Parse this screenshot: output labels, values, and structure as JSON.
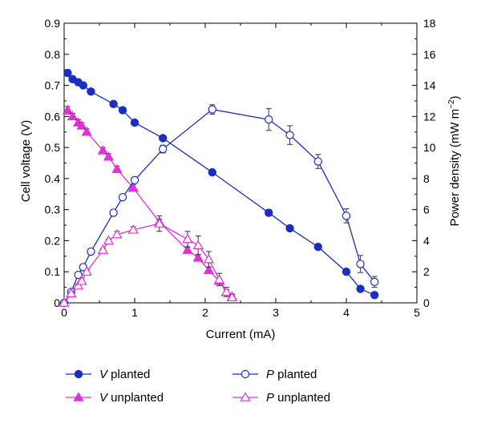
{
  "chart_data": {
    "type": "line",
    "xlabel": "Current (mA)",
    "ylabel_left": "Cell voltage (V)",
    "ylabel_right_main": "Power density (mW m",
    "ylabel_right_sup": "−2",
    "ylabel_right_end": ")",
    "xlim": [
      0,
      5
    ],
    "ylim_left": [
      0,
      0.9
    ],
    "ylim_right": [
      0,
      18
    ],
    "x_ticks": [
      "0",
      "1",
      "2",
      "3",
      "4",
      "5"
    ],
    "y_left_ticks": [
      "0",
      "0.1",
      "0.2",
      "0.3",
      "0.4",
      "0.5",
      "0.6",
      "0.7",
      "0.8",
      "0.9"
    ],
    "y_right_ticks": [
      "0",
      "2",
      "4",
      "6",
      "8",
      "10",
      "12",
      "14",
      "16",
      "18"
    ],
    "grid": false,
    "legend_placement": "bottom",
    "series": [
      {
        "name_var": "V",
        "name_rest": " planted",
        "axis": "left",
        "color": "#1a2fc2",
        "marker": "circle-filled",
        "points": [
          [
            0.05,
            0.74
          ],
          [
            0.12,
            0.72
          ],
          [
            0.2,
            0.71
          ],
          [
            0.27,
            0.7
          ],
          [
            0.38,
            0.68
          ],
          [
            0.7,
            0.64
          ],
          [
            0.83,
            0.62
          ],
          [
            1.0,
            0.58
          ],
          [
            1.4,
            0.53
          ],
          [
            2.1,
            0.42
          ],
          [
            2.9,
            0.29
          ],
          [
            3.2,
            0.24
          ],
          [
            3.6,
            0.18
          ],
          [
            4.0,
            0.1
          ],
          [
            4.2,
            0.045
          ],
          [
            4.4,
            0.025
          ]
        ],
        "errors": [
          0.01,
          0.006,
          0.006,
          0.006,
          0.006,
          0.006,
          0.006,
          0.006,
          0.006,
          0.006,
          0.01,
          0.008,
          0.006,
          0.006,
          0.006,
          0.004
        ]
      },
      {
        "name_var": "V",
        "name_rest": " unplanted",
        "axis": "left",
        "color": "#e030d8",
        "marker": "triangle-filled",
        "points": [
          [
            0.05,
            0.62
          ],
          [
            0.12,
            0.6
          ],
          [
            0.2,
            0.58
          ],
          [
            0.25,
            0.57
          ],
          [
            0.32,
            0.55
          ],
          [
            0.55,
            0.49
          ],
          [
            0.63,
            0.47
          ],
          [
            0.75,
            0.43
          ],
          [
            0.98,
            0.37
          ],
          [
            1.35,
            0.26
          ],
          [
            1.75,
            0.17
          ],
          [
            1.9,
            0.145
          ],
          [
            2.05,
            0.105
          ],
          [
            2.2,
            0.07
          ],
          [
            2.3,
            0.035
          ],
          [
            2.38,
            0.02
          ]
        ],
        "errors": [
          0.012,
          0.01,
          0.01,
          0.01,
          0.01,
          0.01,
          0.01,
          0.01,
          0.01,
          0.01,
          0.01,
          0.01,
          0.01,
          0.008,
          0.008,
          0.006
        ]
      },
      {
        "name_var": "P",
        "name_rest": " planted",
        "axis": "right",
        "color": "#1a2fc2",
        "marker": "circle-open",
        "points": [
          [
            0,
            0
          ],
          [
            0.1,
            0.7
          ],
          [
            0.2,
            1.8
          ],
          [
            0.27,
            2.3
          ],
          [
            0.38,
            3.3
          ],
          [
            0.7,
            5.8
          ],
          [
            0.83,
            6.8
          ],
          [
            1.0,
            7.9
          ],
          [
            1.4,
            9.9
          ],
          [
            2.1,
            12.45
          ],
          [
            2.9,
            11.8
          ],
          [
            3.2,
            10.8
          ],
          [
            3.6,
            9.1
          ],
          [
            4.0,
            5.6
          ],
          [
            4.2,
            2.5
          ],
          [
            4.4,
            1.35
          ]
        ],
        "errors": [
          0,
          0.15,
          0.15,
          0.15,
          0.15,
          0.15,
          0.15,
          0.15,
          0.25,
          0.3,
          0.7,
          0.6,
          0.45,
          0.45,
          0.55,
          0.35
        ]
      },
      {
        "name_var": "P",
        "name_rest": " unplanted",
        "axis": "right",
        "color": "#e030d8",
        "marker": "triangle-open",
        "points": [
          [
            0,
            0
          ],
          [
            0.1,
            0.6
          ],
          [
            0.2,
            1.1
          ],
          [
            0.25,
            1.4
          ],
          [
            0.32,
            2.0
          ],
          [
            0.55,
            3.4
          ],
          [
            0.63,
            4.0
          ],
          [
            0.75,
            4.4
          ],
          [
            0.98,
            4.7
          ],
          [
            1.35,
            5.1
          ],
          [
            1.75,
            4.1
          ],
          [
            1.9,
            3.7
          ],
          [
            2.05,
            2.8
          ],
          [
            2.2,
            1.5
          ],
          [
            2.3,
            0.7
          ],
          [
            2.38,
            0.35
          ]
        ],
        "errors": [
          0,
          0.1,
          0.1,
          0.1,
          0.1,
          0.1,
          0.1,
          0.2,
          0.2,
          0.5,
          0.5,
          0.6,
          0.5,
          0.4,
          0.3,
          0.2
        ]
      }
    ]
  }
}
